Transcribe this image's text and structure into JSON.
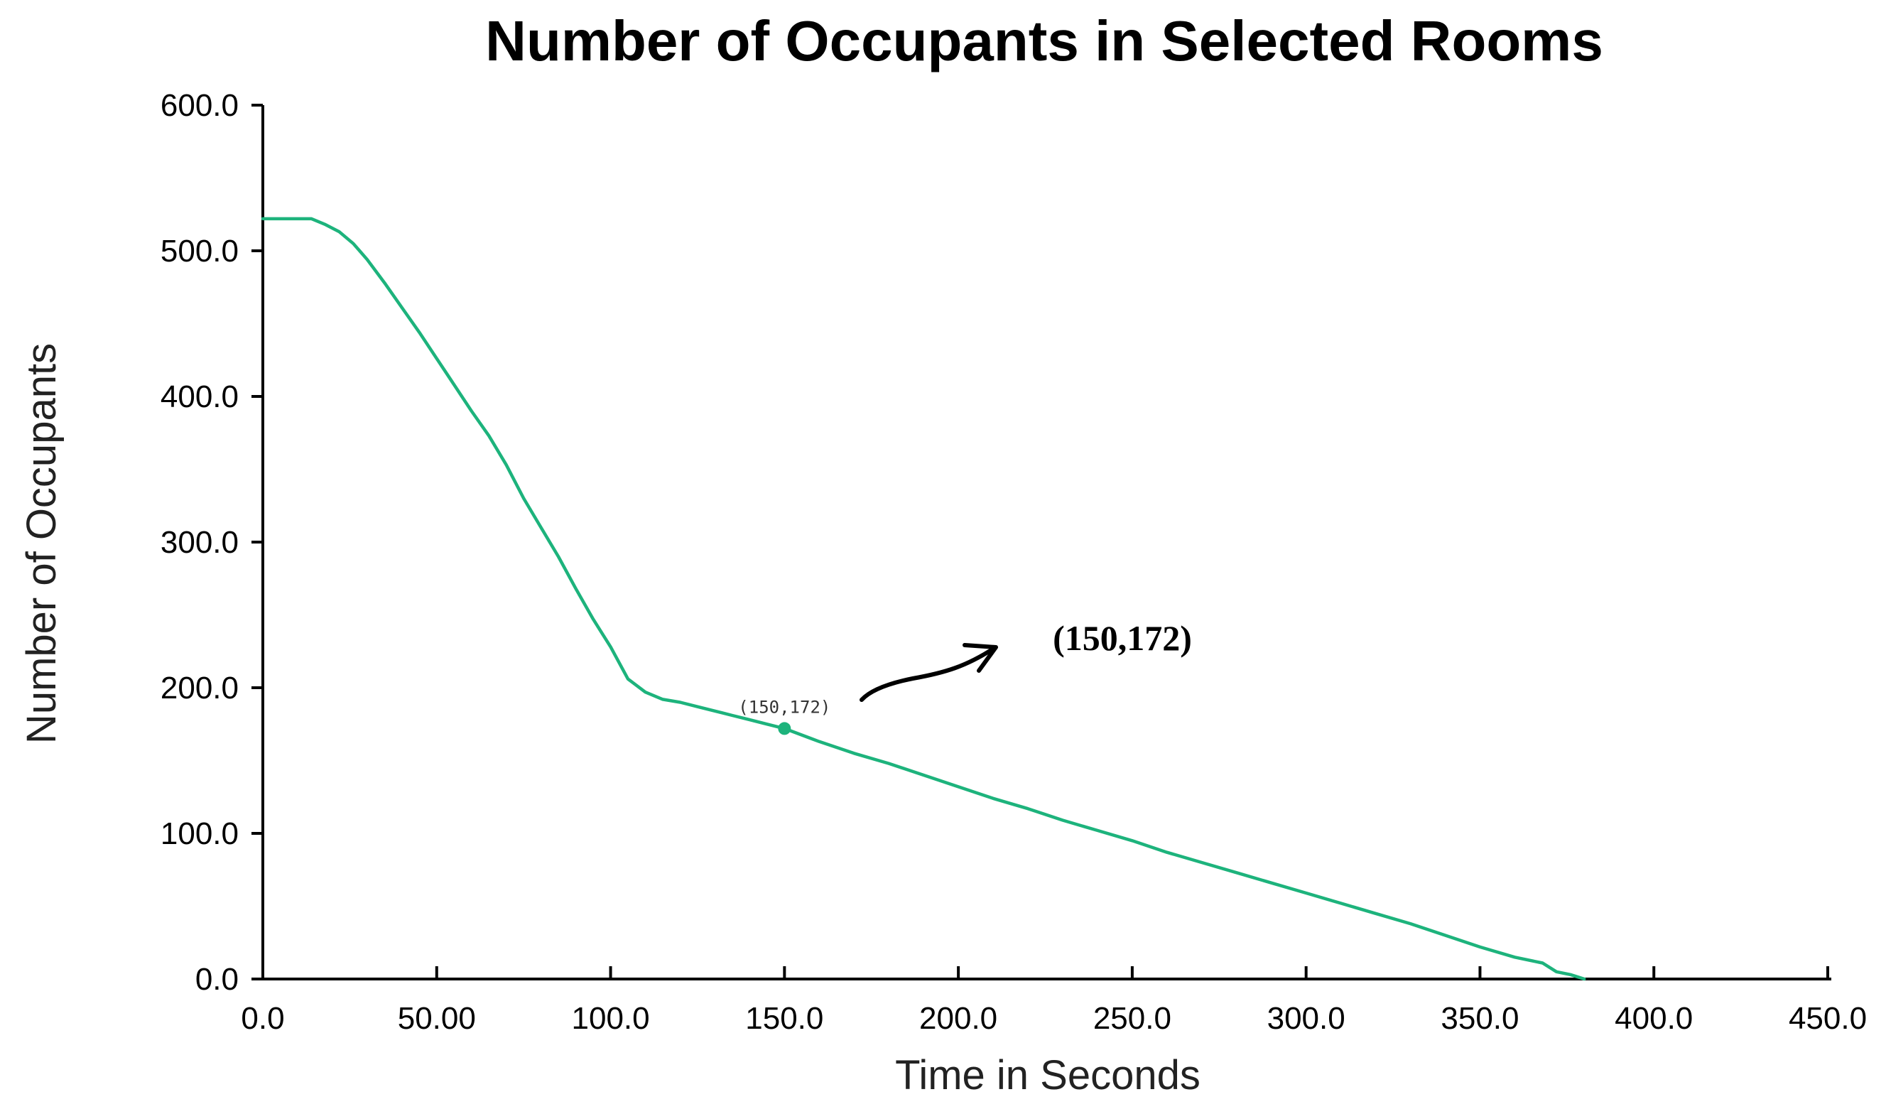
{
  "chart_data": {
    "type": "line",
    "title": "Number of Occupants in Selected Rooms",
    "xlabel": "Time in Seconds",
    "ylabel": "Number of Occupants",
    "xlim": [
      0,
      450
    ],
    "ylim": [
      0,
      600
    ],
    "x_tick_labels": [
      "0.0",
      "50.00",
      "100.0",
      "150.0",
      "200.0",
      "250.0",
      "300.0",
      "350.0",
      "400.0",
      "450.0"
    ],
    "x_tick_values": [
      0,
      50,
      100,
      150,
      200,
      250,
      300,
      350,
      400,
      450
    ],
    "y_tick_labels": [
      "0.0",
      "100.0",
      "200.0",
      "300.0",
      "400.0",
      "500.0",
      "600.0"
    ],
    "y_tick_values": [
      0,
      100,
      200,
      300,
      400,
      500,
      600
    ],
    "grid": false,
    "series": [
      {
        "color": "#1db37c",
        "x": [
          0,
          14,
          18,
          22,
          26,
          30,
          35,
          40,
          45,
          50,
          55,
          60,
          65,
          70,
          75,
          80,
          85,
          90,
          95,
          100,
          105,
          110,
          115,
          120,
          125,
          130,
          135,
          140,
          145,
          150,
          160,
          170,
          180,
          190,
          200,
          210,
          220,
          230,
          240,
          250,
          260,
          270,
          280,
          290,
          300,
          310,
          320,
          330,
          340,
          350,
          360,
          368,
          372,
          376,
          380
        ],
        "y": [
          522,
          522,
          518,
          513,
          505,
          494,
          478,
          461,
          444,
          426,
          408,
          390,
          373,
          353,
          330,
          310,
          290,
          268,
          247,
          228,
          206,
          197,
          192,
          190,
          187,
          184,
          181,
          178,
          175,
          172,
          163,
          155,
          148,
          140,
          132,
          124,
          117,
          109,
          102,
          95,
          87,
          80,
          73,
          66,
          59,
          52,
          45,
          38,
          30,
          22,
          15,
          11,
          5,
          3,
          0
        ]
      }
    ],
    "highlight_point": {
      "x": 150,
      "y": 172,
      "label": "(150,172)"
    },
    "callout": {
      "label": "(150,172)"
    }
  }
}
